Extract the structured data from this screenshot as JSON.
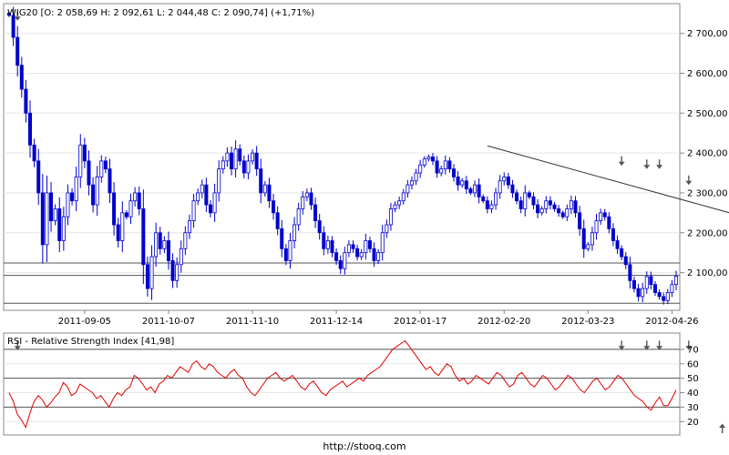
{
  "chart_data": [
    {
      "type": "candlestick",
      "title": "WIG20 [O: 2 058,69  H: 2 092,61  L: 2 044,48  C: 2 090,74] (+1,71%)",
      "ylim": [
        2010,
        2770
      ],
      "y_ticks": [
        2100,
        2200,
        2300,
        2400,
        2500,
        2600,
        2700
      ],
      "y_tick_labels": [
        "2 100,00",
        "2 200,00",
        "2 300,00",
        "2 400,00",
        "2 500,00",
        "2 600,00",
        "2 700,00"
      ],
      "x_tick_labels": [
        "2011-09-05",
        "2011-10-07",
        "2011-11-10",
        "2011-12-14",
        "2012-01-17",
        "2012-02-20",
        "2012-03-23",
        "2012-04-26"
      ],
      "grid": "horizontal",
      "colors": {
        "bull": "#1a1aff",
        "bear": "#0000b0",
        "reference": "#333333"
      },
      "series": [
        {
          "values": [
            2745,
            2690,
            2620,
            2560,
            2500,
            2420,
            2380,
            2300,
            2170,
            2300,
            2230,
            2260,
            2180,
            2240,
            2300,
            2280,
            2340,
            2420,
            2380,
            2320,
            2270,
            2340,
            2380,
            2360,
            2300,
            2220,
            2180,
            2250,
            2240,
            2280,
            2300,
            2260,
            2120,
            2060,
            2140,
            2200,
            2160,
            2180,
            2130,
            2080,
            2120,
            2160,
            2200,
            2230,
            2280,
            2300,
            2320,
            2270,
            2250,
            2300,
            2360,
            2380,
            2400,
            2360,
            2410,
            2380,
            2350,
            2380,
            2400,
            2360,
            2300,
            2320,
            2280,
            2250,
            2210,
            2160,
            2130,
            2180,
            2220,
            2260,
            2290,
            2300,
            2270,
            2230,
            2200,
            2160,
            2180,
            2150,
            2130,
            2110,
            2150,
            2170,
            2160,
            2140,
            2150,
            2180,
            2160,
            2130,
            2150,
            2200,
            2220,
            2260,
            2270,
            2280,
            2300,
            2320,
            2330,
            2350,
            2370,
            2385,
            2390,
            2380,
            2350,
            2360,
            2380,
            2360,
            2340,
            2320,
            2330,
            2310,
            2300,
            2320,
            2290,
            2280,
            2260,
            2270,
            2300,
            2330,
            2340,
            2320,
            2300,
            2280,
            2260,
            2300,
            2290,
            2270,
            2250,
            2260,
            2280,
            2270,
            2260,
            2250,
            2240,
            2260,
            2280,
            2250,
            2210,
            2160,
            2170,
            2200,
            2230,
            2250,
            2240,
            2210,
            2180,
            2160,
            2140,
            2120,
            2080,
            2060,
            2040,
            2060,
            2090,
            2070,
            2050,
            2040,
            2030,
            2050,
            2070,
            2091
          ],
          "x_tick_indices": [
            18,
            38,
            58,
            78,
            98,
            118,
            138,
            158
          ]
        }
      ],
      "trendline": {
        "from": {
          "index": 114,
          "value": 2418
        },
        "to": {
          "index": 181,
          "value": 2223
        }
      },
      "reference_lines": [
        2124,
        2093,
        2023
      ],
      "arrows": [
        {
          "index": 2,
          "value": 2742,
          "direction": "down"
        },
        {
          "index": 146,
          "value": 2378,
          "direction": "down"
        },
        {
          "index": 152,
          "value": 2370,
          "direction": "down"
        },
        {
          "index": 155,
          "value": 2370,
          "direction": "down"
        },
        {
          "index": 162,
          "value": 2330,
          "direction": "down"
        }
      ]
    },
    {
      "type": "line",
      "title": "RSI - Relative Strength Index [41,98]",
      "ylim": [
        12,
        80
      ],
      "y_ticks": [
        20,
        30,
        40,
        50,
        60,
        70
      ],
      "y_tick_labels": [
        "20",
        "30",
        "40",
        "50",
        "60",
        "70"
      ],
      "reference_lines": [
        70,
        50,
        30
      ],
      "colors": {
        "line": "#e00000"
      },
      "series": [
        {
          "values": [
            40,
            34,
            25,
            21,
            16,
            26,
            34,
            38,
            35,
            30,
            33,
            37,
            40,
            47,
            44,
            38,
            40,
            46,
            44,
            42,
            40,
            36,
            38,
            34,
            30,
            36,
            40,
            38,
            42,
            44,
            52,
            50,
            46,
            42,
            44,
            40,
            46,
            48,
            52,
            50,
            54,
            58,
            56,
            54,
            60,
            62,
            58,
            56,
            60,
            58,
            54,
            52,
            50,
            54,
            56,
            52,
            50,
            44,
            40,
            38,
            42,
            46,
            50,
            52,
            54,
            50,
            48,
            50,
            52,
            48,
            44,
            42,
            46,
            48,
            44,
            40,
            38,
            42,
            44,
            46,
            48,
            44,
            46,
            48,
            50,
            48,
            52,
            54,
            56,
            58,
            62,
            66,
            70,
            72,
            74,
            76,
            72,
            68,
            64,
            60,
            56,
            58,
            54,
            52,
            56,
            60,
            58,
            52,
            48,
            50,
            46,
            48,
            52,
            50,
            48,
            46,
            50,
            54,
            52,
            48,
            44,
            46,
            52,
            54,
            50,
            46,
            44,
            48,
            52,
            50,
            46,
            42,
            44,
            48,
            52,
            50,
            46,
            42,
            40,
            44,
            48,
            50,
            46,
            42,
            44,
            48,
            52,
            50,
            46,
            42,
            38,
            36,
            34,
            30,
            28,
            33,
            37,
            31,
            31,
            36,
            42
          ],
          "arrows": [
            {
              "index": 2,
              "value": 71,
              "direction": "down"
            },
            {
              "index": 146,
              "value": 71,
              "direction": "down"
            },
            {
              "index": 152,
              "value": 71,
              "direction": "down"
            },
            {
              "index": 155,
              "value": 71,
              "direction": "down"
            },
            {
              "index": 162,
              "value": 71,
              "direction": "down"
            },
            {
              "index": 170,
              "value": 17,
              "direction": "up"
            }
          ]
        }
      ]
    }
  ],
  "footer": "http://stooq.com"
}
